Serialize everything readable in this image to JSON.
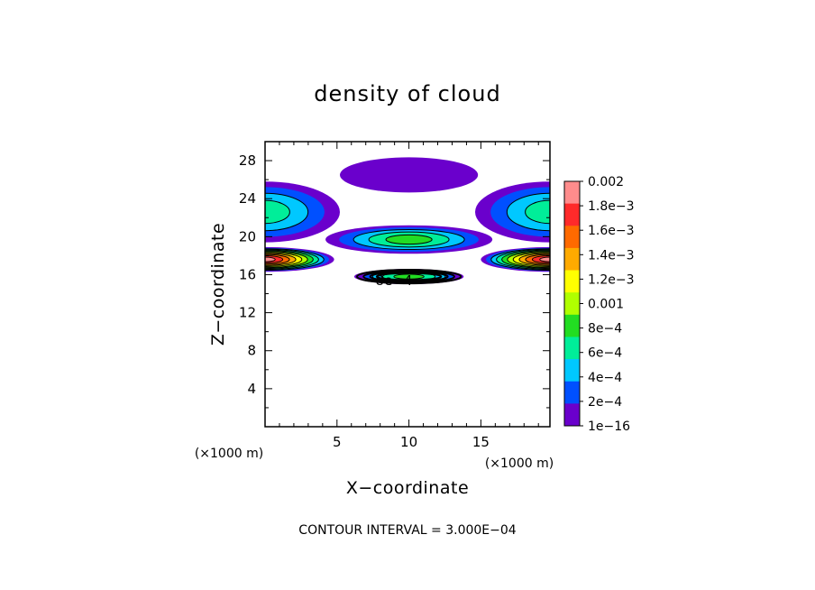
{
  "chart_data": {
    "type": "heatmap",
    "title": "density of cloud",
    "xlabel": "X−coordinate",
    "ylabel": "Z−coordinate",
    "x_unit": "(×1000 m)",
    "x_unit_right": "(×1000 m)",
    "xlim": [
      0,
      19.8
    ],
    "ylim": [
      0,
      30
    ],
    "x_ticks": [
      5,
      10,
      15
    ],
    "x_tick_labels": [
      "5",
      "10",
      "15"
    ],
    "y_ticks": [
      4,
      8,
      12,
      16,
      20,
      24,
      28
    ],
    "y_tick_labels": [
      "4",
      "8",
      "12",
      "16",
      "20",
      "24",
      "28"
    ],
    "contour_interval_text": "CONTOUR INTERVAL = 3.000E−04",
    "contour_label": "8e−4",
    "colorbar": {
      "labels": [
        "0.002",
        "1.8e−3",
        "1.6e−3",
        "1.4e−3",
        "1.2e−3",
        "0.001",
        "8e−4",
        "6e−4",
        "4e−4",
        "2e−4",
        "1e−16"
      ],
      "values": [
        0.002,
        0.0018,
        0.0016,
        0.0014,
        0.0012,
        0.001,
        0.0008,
        0.0006,
        0.0004,
        0.0002,
        1e-16
      ],
      "colors": [
        "#ff8c8c",
        "#ff2a2a",
        "#ff6a00",
        "#ffaa00",
        "#ffff00",
        "#b0ff00",
        "#22dd22",
        "#00ee99",
        "#00c8ff",
        "#0050ff",
        "#6a00cc"
      ]
    },
    "features": [
      {
        "kind": "cap",
        "x_center": 10,
        "z_center": 26.5,
        "x_half_width": 4.8,
        "z_top": 28.5,
        "z_bottom": 24.8,
        "peak": 1e-16
      },
      {
        "kind": "lens",
        "x_center": 10,
        "z_center": 19.7,
        "x_half_width": 5.8,
        "z_half_height": 1.5,
        "peak": 0.0009
      },
      {
        "kind": "lens",
        "x_center": 10,
        "z_center": 15.8,
        "x_half_width": 3.8,
        "z_half_height": 0.8,
        "peak": 0.0008
      },
      {
        "kind": "edge_lens",
        "x_center": 0,
        "z_center": 22.6,
        "x_half_width": 5.2,
        "z_half_height": 3.2,
        "peak": 0.0006
      },
      {
        "kind": "edge_lens",
        "x_center": 19.8,
        "z_center": 22.6,
        "x_half_width": 5.2,
        "z_half_height": 3.2,
        "peak": 0.0006
      },
      {
        "kind": "edge_lens",
        "x_center": 0,
        "z_center": 17.6,
        "x_half_width": 4.8,
        "z_half_height": 1.3,
        "peak": 0.002
      },
      {
        "kind": "edge_lens",
        "x_center": 19.8,
        "z_center": 17.6,
        "x_half_width": 4.8,
        "z_half_height": 1.3,
        "peak": 0.002
      }
    ]
  }
}
